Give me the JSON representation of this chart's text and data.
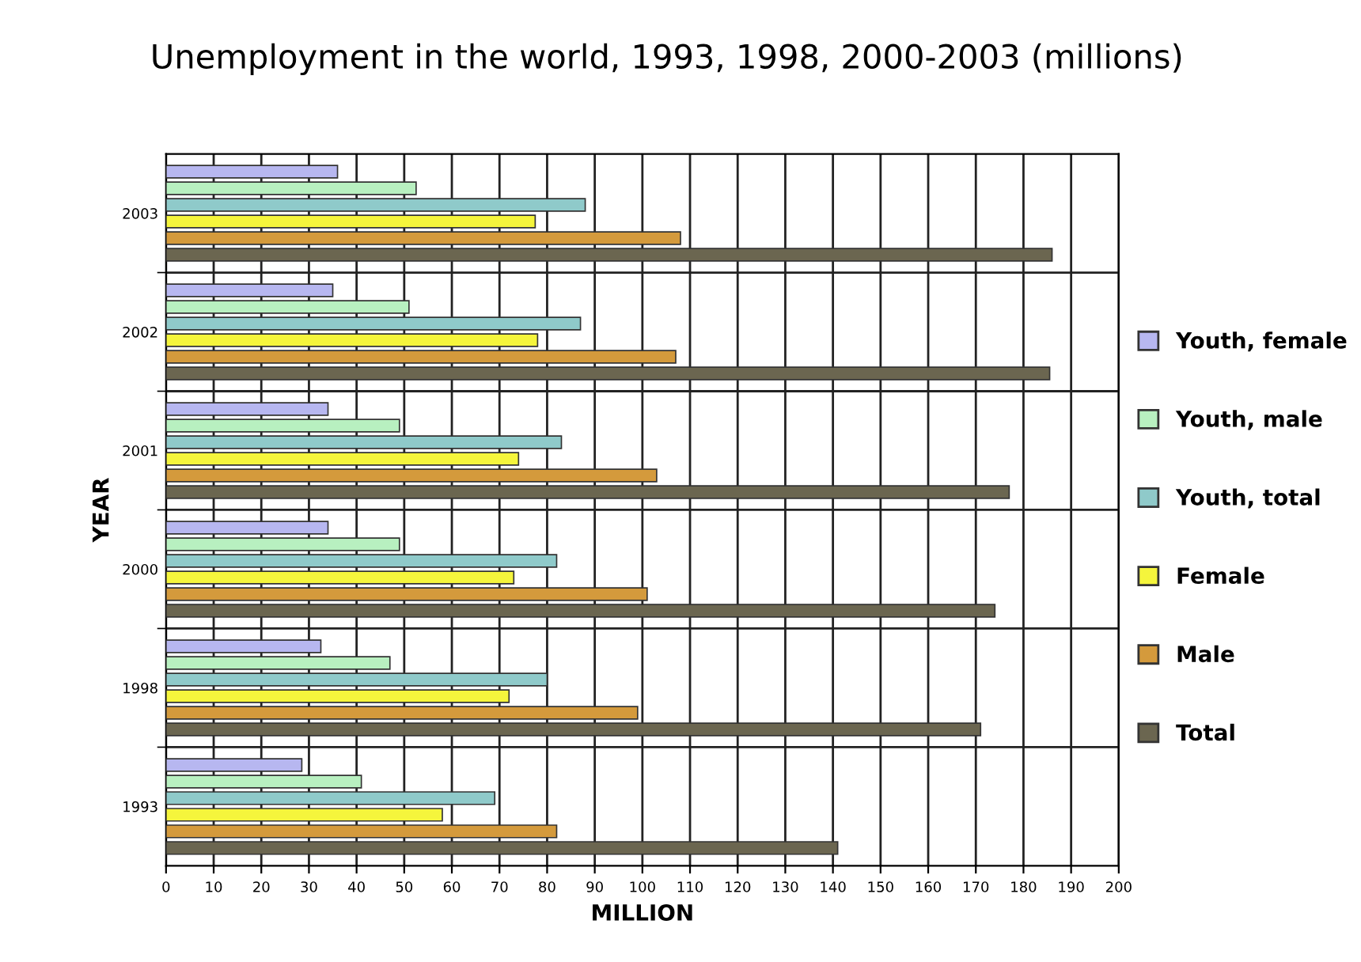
{
  "chart_data": {
    "type": "bar",
    "orientation": "horizontal",
    "title": "Unemployment in the world, 1993, 1998, 2000-2003 (millions)",
    "xlabel": "MILLION",
    "ylabel": "YEAR",
    "categories": [
      "2003",
      "2002",
      "2001",
      "2000",
      "1998",
      "1993"
    ],
    "series": [
      {
        "name": "Youth, female",
        "color": "#b7b7f0",
        "values": [
          36,
          35,
          34,
          34,
          32.5,
          28.5
        ]
      },
      {
        "name": "Youth, male",
        "color": "#b8f0c0",
        "values": [
          52.5,
          51,
          49,
          49,
          47,
          41
        ]
      },
      {
        "name": "Youth, total",
        "color": "#8fcaca",
        "values": [
          88,
          87,
          83,
          82,
          80,
          69
        ]
      },
      {
        "name": "Female",
        "color": "#f5f53c",
        "values": [
          77.5,
          78,
          74,
          73,
          72,
          58
        ]
      },
      {
        "name": "Male",
        "color": "#d49a3c",
        "values": [
          108,
          107,
          103,
          101,
          99,
          82
        ]
      },
      {
        "name": "Total",
        "color": "#6b6650",
        "values": [
          186,
          185.5,
          177,
          174,
          171,
          141
        ]
      }
    ],
    "xlim": [
      0,
      200
    ],
    "xticks": [
      0,
      10,
      20,
      30,
      40,
      50,
      60,
      70,
      80,
      90,
      100,
      110,
      120,
      130,
      140,
      150,
      160,
      170,
      180,
      190,
      200
    ],
    "grid": "x",
    "legend": "right"
  }
}
